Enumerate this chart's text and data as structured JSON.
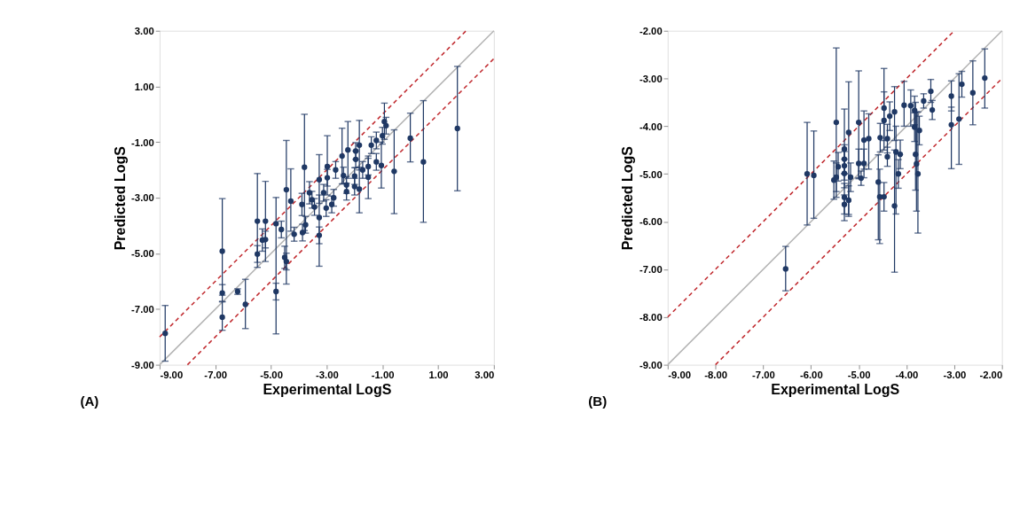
{
  "chart_data": [
    {
      "type": "scatter",
      "xlabel": "Experimental LogS",
      "ylabel": "Predicted LogS",
      "grid": false,
      "xlim": [
        -9,
        3
      ],
      "ylim": [
        -9,
        3
      ],
      "xticks": [
        {
          "value": -9,
          "label": "-9.00"
        },
        {
          "value": -7,
          "label": "-7.00"
        },
        {
          "value": -5,
          "label": "-5.00"
        },
        {
          "value": -3,
          "label": "-3.00"
        },
        {
          "value": -1,
          "label": "-1.00"
        },
        {
          "value": 1,
          "label": "1.00"
        },
        {
          "value": 3,
          "label": "3.00"
        }
      ],
      "yticks": [
        {
          "value": -9,
          "label": "-9.00"
        },
        {
          "value": -7,
          "label": "-7.00"
        },
        {
          "value": -5,
          "label": "-5.00"
        },
        {
          "value": -3,
          "label": "-3.00"
        },
        {
          "value": -1,
          "label": "-1.00"
        },
        {
          "value": 1,
          "label": "1.00"
        },
        {
          "value": 3,
          "label": "3.00"
        }
      ],
      "annotations": [
        "(A)"
      ],
      "series": [
        {
          "type": "line",
          "color": "#b4b4b4",
          "line_style": "solid",
          "x": [
            -9,
            3
          ],
          "values": [
            -9,
            3
          ]
        },
        {
          "type": "line",
          "color": "#c0282d",
          "line_style": "dashed",
          "x": [
            -9,
            2
          ],
          "values": [
            -8,
            3
          ]
        },
        {
          "type": "line",
          "color": "#c0282d",
          "line_style": "dashed",
          "x": [
            -8,
            3
          ],
          "values": [
            -9,
            2
          ]
        },
        {
          "marker": "circle",
          "color": "#1f3864",
          "x": [
            -8.8,
            -6.75,
            -6.75,
            -6.75,
            -6.2,
            -5.92,
            -5.49,
            -5.49,
            -5.31,
            -5.2,
            -5.2,
            -4.82,
            -4.82,
            -4.63,
            -4.51,
            -4.45,
            -4.45,
            -4.29,
            -4.17,
            -3.89,
            -3.8,
            -3.87,
            -3.76,
            -3.62,
            -3.53,
            -3.44,
            -3.27,
            -3.27,
            -3.27,
            -3.11,
            -2.98,
            -2.98,
            -3.02,
            -2.82,
            -2.75,
            -2.68,
            -2.45,
            -2.4,
            -2.29,
            -2.29,
            -2.24,
            -2.0,
            -2.0,
            -1.96,
            -1.96,
            -1.83,
            -1.83,
            -1.71,
            -1.51,
            -1.51,
            -1.4,
            -1.22,
            -1.22,
            -1.04,
            -1.0,
            -0.93,
            -0.87,
            -0.58,
            0.0,
            0.47,
            1.69
          ],
          "values": [
            -7.87,
            -4.92,
            -6.42,
            -7.29,
            -6.37,
            -6.83,
            -3.84,
            -5.02,
            -4.52,
            -3.84,
            -4.5,
            -3.93,
            -6.37,
            -4.14,
            -5.14,
            -2.71,
            -5.29,
            -3.12,
            -4.31,
            -3.24,
            -1.9,
            -4.25,
            -3.97,
            -2.82,
            -3.07,
            -3.33,
            -2.35,
            -3.71,
            -4.35,
            -2.82,
            -1.88,
            -2.28,
            -3.37,
            -3.24,
            -3.0,
            -2.0,
            -1.5,
            -2.2,
            -2.54,
            -2.78,
            -1.28,
            -2.22,
            -2.6,
            -1.32,
            -1.62,
            -2.69,
            -1.11,
            -2.0,
            -2.26,
            -1.88,
            -1.11,
            -1.71,
            -0.94,
            -1.84,
            -0.77,
            -0.26,
            -0.41,
            -2.05,
            -0.86,
            -1.71,
            -0.51
          ],
          "errors": [
            [
              -8.87,
              -6.87
            ],
            [
              -6.5,
              -3.03
            ],
            0.3,
            [
              -7.76,
              -6.74
            ],
            0.1,
            [
              -7.7,
              -5.93
            ],
            [
              -5.5,
              -2.13
            ],
            0.3,
            0.4,
            [
              -5.29,
              -2.41
            ],
            0.3,
            [
              -7.89,
              -2.99
            ],
            0.3,
            0.3,
            0.4,
            [
              -6.1,
              -0.94
            ],
            0.3,
            [
              -4.2,
              -1.96
            ],
            0.25,
            0.4,
            [
              -4.18,
              0.0
            ],
            0.3,
            0.3,
            0.4,
            0.3,
            0.3,
            [
              -3.2,
              -1.45
            ],
            [
              -5.46,
              -2.9
            ],
            0.3,
            0.3,
            [
              -2.9,
              -0.77
            ],
            0.3,
            0.3,
            0.3,
            0.3,
            0.3,
            [
              -2.5,
              -0.5
            ],
            0.3,
            0.3,
            0.3,
            [
              -2.3,
              -0.26
            ],
            0.3,
            0.3,
            0.3,
            0.3,
            [
              -3.54,
              -1.9
            ],
            [
              -2.0,
              -0.22
            ],
            0.3,
            [
              -3.03,
              -1.5
            ],
            0.3,
            0.3,
            0.3,
            0.3,
            [
              -2.65,
              -1.0
            ],
            0.3,
            [
              -0.9,
              0.4
            ],
            0.3,
            [
              -3.57,
              -0.56
            ],
            [
              -1.71,
              0.04
            ],
            [
              -3.88,
              0.49
            ],
            [
              -2.75,
              1.72
            ]
          ]
        }
      ]
    },
    {
      "type": "scatter",
      "xlabel": "Experimental LogS",
      "ylabel": "Predicted LogS",
      "grid": false,
      "xlim": [
        -9,
        -2
      ],
      "ylim": [
        -9,
        -2
      ],
      "xticks": [
        {
          "value": -9,
          "label": "-9.00"
        },
        {
          "value": -8,
          "label": "-8.00"
        },
        {
          "value": -7,
          "label": "-7.00"
        },
        {
          "value": -6,
          "label": "-6.00"
        },
        {
          "value": -5,
          "label": "-5.00"
        },
        {
          "value": -4,
          "label": "-4.00"
        },
        {
          "value": -3,
          "label": "-3.00"
        },
        {
          "value": -2,
          "label": "-2.00"
        }
      ],
      "yticks": [
        {
          "value": -9,
          "label": "-9.00"
        },
        {
          "value": -8,
          "label": "-8.00"
        },
        {
          "value": -7,
          "label": "-7.00"
        },
        {
          "value": -6,
          "label": "-6.00"
        },
        {
          "value": -5,
          "label": "-5.00"
        },
        {
          "value": -4,
          "label": "-4.00"
        },
        {
          "value": -3,
          "label": "-3.00"
        },
        {
          "value": -2,
          "label": "-2.00"
        }
      ],
      "annotations": [
        "(B)"
      ],
      "series": [
        {
          "type": "line",
          "color": "#b4b4b4",
          "line_style": "solid",
          "x": [
            -9,
            -2
          ],
          "values": [
            -9,
            -2
          ]
        },
        {
          "type": "line",
          "color": "#c0282d",
          "line_style": "dashed",
          "x": [
            -9,
            -3
          ],
          "values": [
            -8,
            -2
          ]
        },
        {
          "type": "line",
          "color": "#c0282d",
          "line_style": "dashed",
          "x": [
            -8,
            -2
          ],
          "values": [
            -9,
            -3
          ]
        },
        {
          "marker": "circle",
          "color": "#1f3864",
          "x": [
            -6.53,
            -6.08,
            -5.94,
            -5.52,
            -5.47,
            -5.43,
            -5.47,
            -5.3,
            -5.3,
            -5.3,
            -5.3,
            -5.3,
            -5.3,
            -5.21,
            -5.21,
            -5.17,
            -5.0,
            -5.0,
            -4.95,
            -4.89,
            -4.89,
            -4.79,
            -4.59,
            -4.56,
            -4.55,
            -4.47,
            -4.47,
            -4.47,
            -4.4,
            -4.4,
            -4.35,
            -4.25,
            -4.25,
            -4.22,
            -4.17,
            -4.13,
            -4.05,
            -3.91,
            -3.83,
            -3.83,
            -3.81,
            -3.79,
            -3.76,
            -3.73,
            -3.64,
            -3.49,
            -3.46,
            -3.06,
            -3.06,
            -2.9,
            -2.84,
            -2.61,
            -2.36
          ],
          "values": [
            -6.99,
            -5.0,
            -5.03,
            -5.13,
            -3.92,
            -4.85,
            -5.07,
            -4.48,
            -4.69,
            -4.83,
            -4.99,
            -5.49,
            -5.64,
            -4.13,
            -5.55,
            -5.07,
            -3.92,
            -4.78,
            -5.09,
            -4.29,
            -4.78,
            -4.26,
            -5.17,
            -5.48,
            -4.24,
            -3.62,
            -3.88,
            -5.48,
            -4.64,
            -4.26,
            -3.79,
            -3.7,
            -5.67,
            -4.54,
            -5.0,
            -4.59,
            -3.56,
            -3.57,
            -3.67,
            -4.02,
            -4.59,
            -4.79,
            -5.0,
            -4.09,
            -3.47,
            -3.27,
            -3.66,
            -3.37,
            -3.97,
            -3.85,
            -3.12,
            -3.3,
            -2.99
          ],
          "errors": [
            [
              -7.45,
              -6.52
            ],
            [
              -6.07,
              -3.92
            ],
            [
              -5.93,
              -4.1
            ],
            0.4,
            [
              -5.49,
              -2.36
            ],
            0.3,
            0.3,
            [
              -5.0,
              -3.64
            ],
            0.3,
            0.3,
            0.3,
            [
              -5.98,
              -5.2
            ],
            0.2,
            [
              -5.89,
              -3.07
            ],
            0.3,
            0.3,
            [
              -5.1,
              -2.84
            ],
            0.3,
            0.15,
            [
              -4.9,
              -3.68
            ],
            0.3,
            [
              -4.9,
              -3.74
            ],
            [
              -6.38,
              -4.6
            ],
            [
              -6.46,
              -4.9
            ],
            0.3,
            [
              -4.3,
              -2.79
            ],
            [
              -4.5,
              -3.28
            ],
            0.3,
            0.2,
            0.3,
            0.3,
            [
              -4.3,
              -3.17
            ],
            [
              -7.06,
              -4.5
            ],
            [
              -5.84,
              -4.0
            ],
            0.3,
            0.3,
            [
              -4.0,
              -3.06
            ],
            [
              -4.0,
              -3.24
            ],
            0.3,
            0.3,
            [
              -5.34,
              -3.5
            ],
            [
              -5.78,
              -3.7
            ],
            [
              -6.24,
              -3.7
            ],
            0.3,
            0.15,
            [
              -3.5,
              -3.02
            ],
            [
              -3.86,
              -3.46
            ],
            [
              -3.68,
              -3.05
            ],
            [
              -4.89,
              -3.6
            ],
            [
              -4.8,
              -2.9
            ],
            [
              -3.39,
              -2.85
            ],
            [
              -3.97,
              -2.63
            ],
            [
              -3.62,
              -2.38
            ]
          ]
        }
      ]
    }
  ]
}
